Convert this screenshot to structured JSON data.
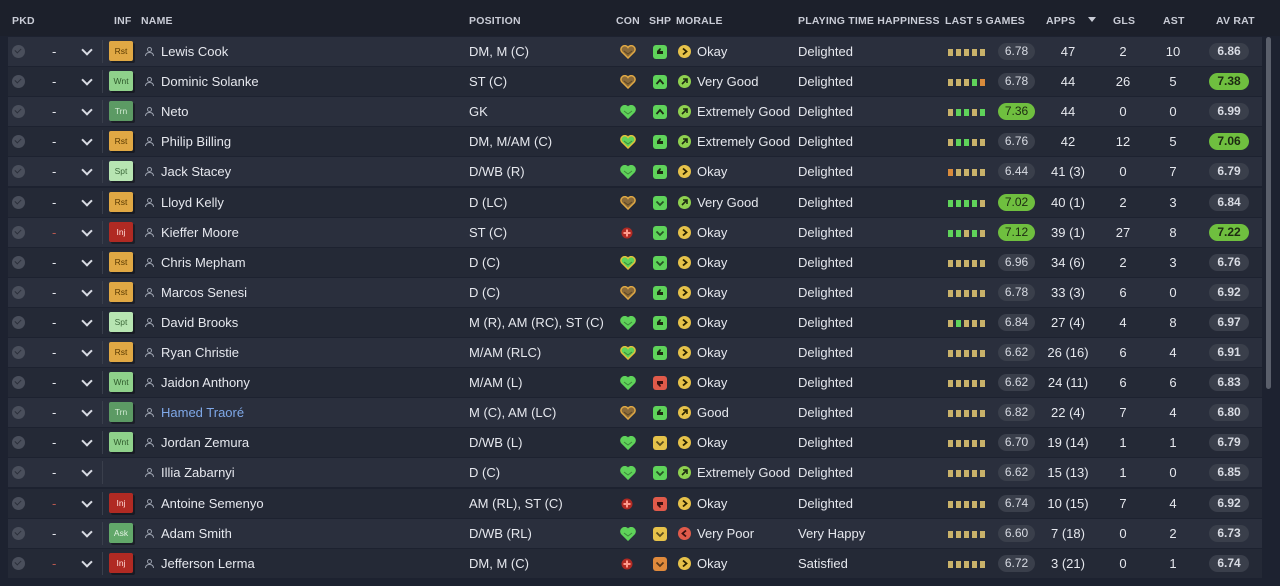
{
  "columns": {
    "pkd": "PKD",
    "inf": "INF",
    "name": "NAME",
    "position": "POSITION",
    "con": "CON",
    "shp": "SHP",
    "morale": "MORALE",
    "pth": "PLAYING TIME HAPPINESS",
    "last5": "LAST 5 GAMES",
    "apps": "APPS",
    "gls": "GLS",
    "ast": "AST",
    "avrat": "AV RAT"
  },
  "colors": {
    "header_bg": "#1c202b",
    "row_odd": "#2a2f3d",
    "row_even": "#242936",
    "accent_green": "#6fbf3f",
    "form_green": "#5fd35a",
    "form_tan": "#c9b26a",
    "form_orange": "#d98b3c",
    "link_blue": "#7fa8e8"
  },
  "players": [
    {
      "pick": "-",
      "pick_red": false,
      "inf": "Rst",
      "name": "Lewis Cook",
      "position": "DM, M (C)",
      "con": "heart-brown",
      "shp": "up-green",
      "morale_icon": "arrow-right-yellow",
      "morale": "Okay",
      "pth": "Delighted",
      "last5": [
        "t",
        "t",
        "t",
        "t",
        "t"
      ],
      "l5": "6.78",
      "l5hi": false,
      "apps": "47",
      "gls": "2",
      "ast": "10",
      "avr": "6.86",
      "avrhi": false,
      "link": false
    },
    {
      "pick": "-",
      "pick_red": false,
      "inf": "Wnt",
      "name": "Dominic Solanke",
      "position": "ST (C)",
      "con": "heart-brown",
      "shp": "arrow-up-green",
      "morale_icon": "arrow-up-green",
      "morale": "Very Good",
      "pth": "Delighted",
      "last5": [
        "t",
        "t",
        "t",
        "g",
        "o"
      ],
      "l5": "6.78",
      "l5hi": false,
      "apps": "44",
      "gls": "26",
      "ast": "5",
      "avr": "7.38",
      "avrhi": true,
      "link": false
    },
    {
      "pick": "-",
      "pick_red": false,
      "inf": "Trn",
      "name": "Neto",
      "position": "GK",
      "con": "heart-green",
      "shp": "arrow-up-green",
      "morale_icon": "arrow-up-green",
      "morale": "Extremely Good",
      "pth": "Delighted",
      "last5": [
        "t",
        "g",
        "g",
        "t",
        "g"
      ],
      "l5": "7.36",
      "l5hi": true,
      "apps": "44",
      "gls": "0",
      "ast": "0",
      "avr": "6.99",
      "avrhi": false,
      "link": false
    },
    {
      "pick": "-",
      "pick_red": false,
      "inf": "Rst",
      "name": "Philip Billing",
      "position": "DM, M/AM (C)",
      "con": "heart-green-gold",
      "shp": "up-green",
      "morale_icon": "arrow-up-green",
      "morale": "Extremely Good",
      "pth": "Delighted",
      "last5": [
        "t",
        "g",
        "g",
        "t",
        "t"
      ],
      "l5": "6.76",
      "l5hi": false,
      "apps": "42",
      "gls": "12",
      "ast": "5",
      "avr": "7.06",
      "avrhi": true,
      "link": false
    },
    {
      "pick": "-",
      "pick_red": false,
      "inf": "Spt",
      "name": "Jack Stacey",
      "position": "D/WB (R)",
      "con": "heart-green",
      "shp": "up-green",
      "morale_icon": "arrow-right-yellow",
      "morale": "Okay",
      "pth": "Delighted",
      "last5": [
        "o",
        "t",
        "t",
        "t",
        "t"
      ],
      "l5": "6.44",
      "l5hi": false,
      "apps": "41 (3)",
      "gls": "0",
      "ast": "7",
      "avr": "6.79",
      "avrhi": false,
      "link": false
    },
    {
      "pick": "-",
      "pick_red": false,
      "inf": "Rst",
      "name": "Lloyd Kelly",
      "position": "D (LC)",
      "con": "heart-brown",
      "shp": "check-green",
      "morale_icon": "arrow-up-green",
      "morale": "Very Good",
      "pth": "Delighted",
      "last5": [
        "g",
        "g",
        "g",
        "g",
        "t"
      ],
      "l5": "7.02",
      "l5hi": true,
      "apps": "40 (1)",
      "gls": "2",
      "ast": "3",
      "avr": "6.84",
      "avrhi": false,
      "link": false
    },
    {
      "pick": "-",
      "pick_red": true,
      "inf": "Inj",
      "name": "Kieffer Moore",
      "position": "ST (C)",
      "con": "injury-red",
      "shp": "check-green",
      "morale_icon": "arrow-right-yellow",
      "morale": "Okay",
      "pth": "Delighted",
      "last5": [
        "g",
        "g",
        "t",
        "g",
        "t"
      ],
      "l5": "7.12",
      "l5hi": true,
      "apps": "39 (1)",
      "gls": "27",
      "ast": "8",
      "avr": "7.22",
      "avrhi": true,
      "link": false
    },
    {
      "pick": "-",
      "pick_red": false,
      "inf": "Rst",
      "name": "Chris Mepham",
      "position": "D (C)",
      "con": "heart-green-gold",
      "shp": "check-green",
      "morale_icon": "arrow-right-yellow",
      "morale": "Okay",
      "pth": "Delighted",
      "last5": [
        "t",
        "t",
        "t",
        "t",
        "t"
      ],
      "l5": "6.96",
      "l5hi": false,
      "apps": "34 (6)",
      "gls": "2",
      "ast": "3",
      "avr": "6.76",
      "avrhi": false,
      "link": false
    },
    {
      "pick": "-",
      "pick_red": false,
      "inf": "Rst",
      "name": "Marcos Senesi",
      "position": "D (C)",
      "con": "heart-brown",
      "shp": "up-green",
      "morale_icon": "arrow-right-yellow",
      "morale": "Okay",
      "pth": "Delighted",
      "last5": [
        "t",
        "t",
        "t",
        "t",
        "t"
      ],
      "l5": "6.78",
      "l5hi": false,
      "apps": "33 (3)",
      "gls": "6",
      "ast": "0",
      "avr": "6.92",
      "avrhi": false,
      "link": false
    },
    {
      "pick": "-",
      "pick_red": false,
      "inf": "Spt",
      "name": "David Brooks",
      "position": "M (R), AM (RC), ST (C)",
      "con": "heart-green",
      "shp": "up-green",
      "morale_icon": "arrow-right-yellow",
      "morale": "Okay",
      "pth": "Delighted",
      "last5": [
        "t",
        "g",
        "t",
        "t",
        "t"
      ],
      "l5": "6.84",
      "l5hi": false,
      "apps": "27 (4)",
      "gls": "4",
      "ast": "8",
      "avr": "6.97",
      "avrhi": false,
      "link": false
    },
    {
      "pick": "-",
      "pick_red": false,
      "inf": "Rst",
      "name": "Ryan Christie",
      "position": "M/AM (RLC)",
      "con": "heart-green-gold",
      "shp": "up-green",
      "morale_icon": "arrow-right-yellow",
      "morale": "Okay",
      "pth": "Delighted",
      "last5": [
        "t",
        "t",
        "t",
        "t",
        "t"
      ],
      "l5": "6.62",
      "l5hi": false,
      "apps": "26 (16)",
      "gls": "6",
      "ast": "4",
      "avr": "6.91",
      "avrhi": false,
      "link": false
    },
    {
      "pick": "-",
      "pick_red": false,
      "inf": "Wnt",
      "name": "Jaidon Anthony",
      "position": "M/AM (L)",
      "con": "heart-green",
      "shp": "down-red",
      "morale_icon": "arrow-right-yellow",
      "morale": "Okay",
      "pth": "Delighted",
      "last5": [
        "t",
        "t",
        "t",
        "t",
        "t"
      ],
      "l5": "6.62",
      "l5hi": false,
      "apps": "24 (11)",
      "gls": "6",
      "ast": "6",
      "avr": "6.83",
      "avrhi": false,
      "link": false
    },
    {
      "pick": "-",
      "pick_red": false,
      "inf": "Trn",
      "name": "Hamed Traoré",
      "position": "M (C), AM (LC)",
      "con": "heart-brown",
      "shp": "up-green",
      "morale_icon": "arrow-up-yellow",
      "morale": "Good",
      "pth": "Delighted",
      "last5": [
        "t",
        "t",
        "t",
        "t",
        "t"
      ],
      "l5": "6.82",
      "l5hi": false,
      "apps": "22 (4)",
      "gls": "7",
      "ast": "4",
      "avr": "6.80",
      "avrhi": false,
      "link": true
    },
    {
      "pick": "-",
      "pick_red": false,
      "inf": "Wnt",
      "name": "Jordan Zemura",
      "position": "D/WB (L)",
      "con": "heart-green",
      "shp": "check-yellow",
      "morale_icon": "arrow-right-yellow",
      "morale": "Okay",
      "pth": "Delighted",
      "last5": [
        "t",
        "t",
        "t",
        "t",
        "t"
      ],
      "l5": "6.70",
      "l5hi": false,
      "apps": "19 (14)",
      "gls": "1",
      "ast": "1",
      "avr": "6.79",
      "avrhi": false,
      "link": false
    },
    {
      "pick": "-",
      "pick_red": false,
      "inf": "",
      "name": "Illia Zabarnyi",
      "position": "D (C)",
      "con": "heart-green",
      "shp": "check-green",
      "morale_icon": "arrow-up-green",
      "morale": "Extremely Good",
      "pth": "Delighted",
      "last5": [
        "t",
        "t",
        "t",
        "t",
        "t"
      ],
      "l5": "6.62",
      "l5hi": false,
      "apps": "15 (13)",
      "gls": "1",
      "ast": "0",
      "avr": "6.85",
      "avrhi": false,
      "link": false
    },
    {
      "pick": "-",
      "pick_red": true,
      "inf": "Inj",
      "name": "Antoine Semenyo",
      "position": "AM (RL), ST (C)",
      "con": "injury-red",
      "shp": "down-red",
      "morale_icon": "arrow-right-yellow",
      "morale": "Okay",
      "pth": "Delighted",
      "last5": [
        "t",
        "t",
        "t",
        "t",
        "t"
      ],
      "l5": "6.74",
      "l5hi": false,
      "apps": "10 (15)",
      "gls": "7",
      "ast": "4",
      "avr": "6.92",
      "avrhi": false,
      "link": false
    },
    {
      "pick": "-",
      "pick_red": false,
      "inf": "Ask",
      "name": "Adam Smith",
      "position": "D/WB (RL)",
      "con": "heart-green",
      "shp": "check-yellow",
      "morale_icon": "arrow-left-red",
      "morale": "Very Poor",
      "pth": "Very Happy",
      "last5": [
        "t",
        "t",
        "t",
        "t",
        "t"
      ],
      "l5": "6.60",
      "l5hi": false,
      "apps": "7 (18)",
      "gls": "0",
      "ast": "2",
      "avr": "6.73",
      "avrhi": false,
      "link": false
    },
    {
      "pick": "-",
      "pick_red": true,
      "inf": "Inj",
      "name": "Jefferson Lerma",
      "position": "DM, M (C)",
      "con": "injury-red",
      "shp": "check-orange",
      "morale_icon": "arrow-right-yellow",
      "morale": "Okay",
      "pth": "Satisfied",
      "last5": [
        "t",
        "t",
        "t",
        "t",
        "t"
      ],
      "l5": "6.72",
      "l5hi": false,
      "apps": "3 (21)",
      "gls": "0",
      "ast": "1",
      "avr": "6.74",
      "avrhi": false,
      "link": false
    }
  ]
}
